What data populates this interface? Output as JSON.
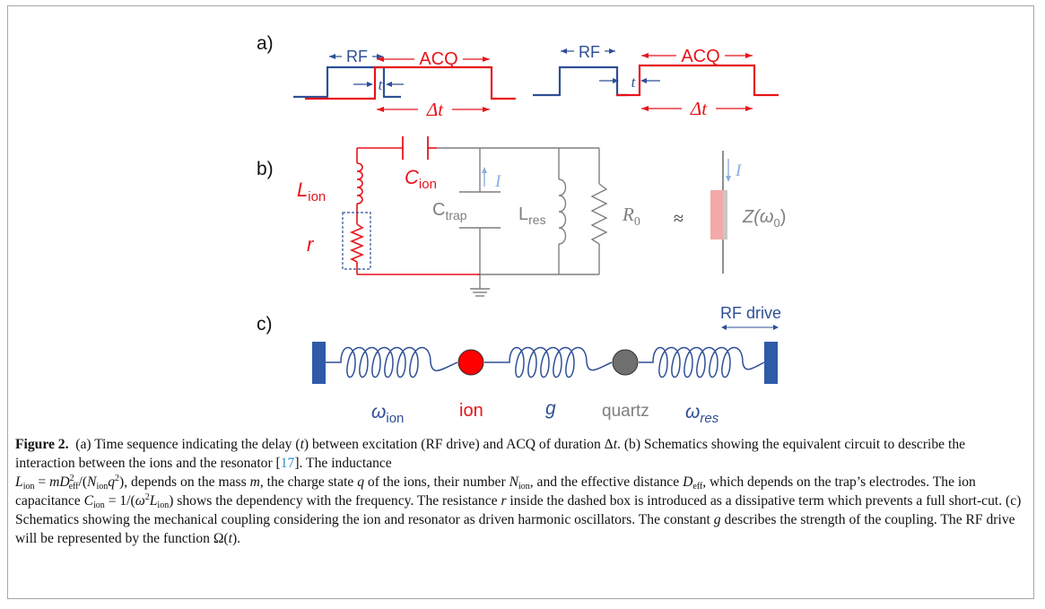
{
  "panel_labels": {
    "a": "a)",
    "b": "b)",
    "c": "c)"
  },
  "timing": {
    "rf": "RF",
    "acq": "ACQ",
    "t": "t",
    "delta_t": "Δt"
  },
  "circuit": {
    "l_ion_main": "L",
    "l_ion_sub": "ion",
    "c_ion_main": "C",
    "c_ion_sub": "ion",
    "r": "r",
    "current": "I",
    "c_trap_main": "C",
    "c_trap_sub": "trap",
    "l_res_main": "L",
    "l_res_sub": "res",
    "r0_main": "R",
    "r0_sub": "0",
    "approx": "≈",
    "impedance": "Z(ω",
    "impedance_sub": "0",
    "impedance_close": ")"
  },
  "mechanical": {
    "rf_drive": "RF drive",
    "omega_ion_main": "ω",
    "omega_ion_sub": "ion",
    "ion": "ion",
    "g": "g",
    "quartz": "quartz",
    "omega_res_main": "ω",
    "omega_res_sub": "res"
  },
  "caption": {
    "figure_label": "Figure 2.",
    "s1": "(a) Time sequence indicating the delay (",
    "s2": ") between excitation (RF drive) and ACQ of duration Δ",
    "s3": ". (b) Schematics showing the equivalent circuit to describe the interaction between the ions and the resonator [",
    "ref": "17",
    "s4": "]. The inductance",
    "s5": ", depends on the mass ",
    "s6": ", the charge state ",
    "s7": " of the ions, their number ",
    "s8": ", and the effective distance ",
    "s9": ", which depends on the trap’s electrodes. The ion capacitance ",
    "s10": " shows the dependency with the frequency. The resistance ",
    "s11": " inside the dashed box is introduced as a dissipative term which prevents a full short-cut. (c) Schematics showing the mechanical coupling considering the ion and resonator as driven harmonic oscillators. The constant ",
    "s12": " describes the strength of the coupling. The RF drive will be represented by the function Ω(",
    "s13": ").",
    "var_t": "t",
    "var_m": "m",
    "var_q": "q",
    "var_g": "g",
    "var_r": "r",
    "n_ion_main": "N",
    "n_ion_sub": "ion",
    "d_eff_main": "D",
    "d_eff_sub": "eff",
    "l_ion_eq_main": "L",
    "l_ion_eq_sub": "ion",
    "l_ion_eq_rest": " = ",
    "c_ion_eq_main": "C",
    "c_ion_eq_sub": "ion",
    "c_ion_eq_rest": " = 1/(",
    "omega": "ω",
    "omega_sup": "2",
    "c_eq_l": "L",
    "c_eq_l_sub": "ion",
    "c_eq_close": ")",
    "l_eq_m": "m",
    "l_eq_d": "D",
    "l_eq_d_sup": "2",
    "l_eq_d_sub": "eff",
    "l_eq_mid": "/(",
    "l_eq_n": "N",
    "l_eq_n_sub": "ion",
    "l_eq_q": "q",
    "l_eq_q_sup": "2",
    "l_eq_close": ")"
  },
  "colors": {
    "blue": "#2e4f96",
    "red": "#e8141b",
    "grey": "#7f7f7f",
    "light_blue": "#8aaee0",
    "ion_fill": "#ff0000",
    "quartz_fill": "#6f6f6f",
    "wall": "#2e5aa8"
  }
}
